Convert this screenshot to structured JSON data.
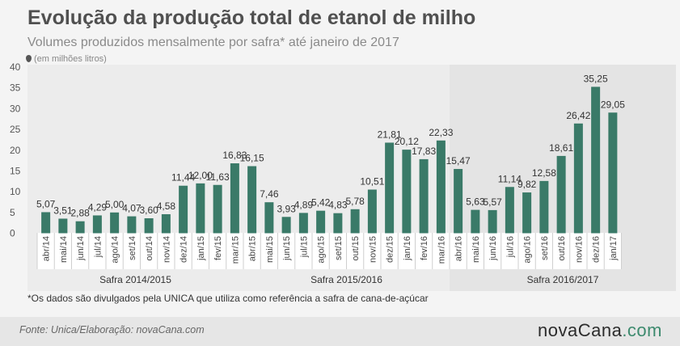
{
  "header": {
    "title": "Evolução da produção total de etanol de milho",
    "subtitle": "Volumes produzidos mensalmente por safra* até janeiro de 2017",
    "unit": "(em milhões litros)"
  },
  "footnote": "*Os dados são divulgados pela UNICA que utiliza como referência a safra de cana-de-açúcar",
  "footer": {
    "source": "Fonte: Unica/Elaboração: novaCana.com",
    "logo_main": "novaCana",
    "logo_suffix": ".com"
  },
  "colors": {
    "bar": "#3a7a68",
    "band_light": "#ececec",
    "band_dark": "#e4e4e4",
    "logo_accent": "#3d8a6e"
  },
  "chart_data": {
    "type": "bar",
    "title": "Evolução da produção total de etanol de milho",
    "subtitle": "Volumes produzidos mensalmente por safra* até janeiro de 2017",
    "ylabel": "(em milhões litros)",
    "ylim": [
      0,
      40
    ],
    "yticks": [
      0,
      5,
      10,
      15,
      20,
      25,
      30,
      35,
      40
    ],
    "grid": false,
    "categories": [
      "abr/14",
      "mai/14",
      "jun/14",
      "jul/14",
      "ago/14",
      "set/14",
      "out/14",
      "nov/14",
      "dez/14",
      "jan/15",
      "fev/15",
      "mar/15",
      "abr/15",
      "mai/15",
      "jun/15",
      "jul/15",
      "ago/15",
      "set/15",
      "out/15",
      "nov/15",
      "dez/15",
      "jan/16",
      "fev/16",
      "mar/16",
      "abr/16",
      "mai/16",
      "jun/16",
      "jul/16",
      "ago/16",
      "set/16",
      "out/16",
      "nov/16",
      "dez/16",
      "jan/17"
    ],
    "values": [
      5.07,
      3.51,
      2.88,
      4.29,
      5.0,
      4.07,
      3.6,
      4.58,
      11.44,
      12.0,
      11.63,
      16.83,
      16.15,
      7.46,
      3.93,
      4.89,
      5.42,
      4.83,
      5.78,
      10.51,
      21.81,
      20.12,
      17.83,
      22.33,
      15.47,
      5.63,
      5.57,
      11.14,
      9.82,
      12.58,
      18.61,
      26.42,
      35.25,
      29.05
    ],
    "value_labels": [
      "5,07",
      "3,51",
      "2,88",
      "4,29",
      "5,00",
      "4,07",
      "3,60",
      "4,58",
      "11,44",
      "12,00",
      "11,63",
      "16,83",
      "16,15",
      "7,46",
      "3,93",
      "4,89",
      "5,42",
      "4,83",
      "5,78",
      "10,51",
      "21,81",
      "20,12",
      "17,83",
      "22,33",
      "15,47",
      "5,63",
      "5,57",
      "11,14",
      "9,82",
      "12,58",
      "18,61",
      "26,42",
      "35,25",
      "29,05"
    ],
    "groups": [
      {
        "name": "Safra 2014/2015",
        "start": 0,
        "end": 11
      },
      {
        "name": "Safra 2015/2016",
        "start": 12,
        "end": 23
      },
      {
        "name": "Safra 2016/2017",
        "start": 24,
        "end": 33
      }
    ]
  }
}
